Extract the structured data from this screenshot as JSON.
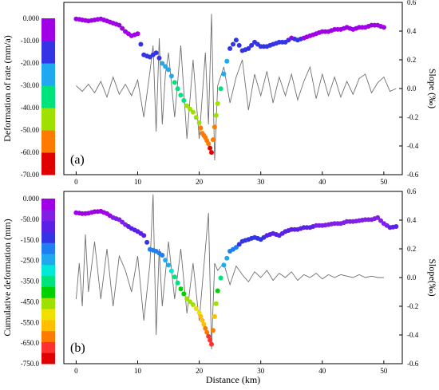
{
  "chart_data": [
    {
      "type": "scatter",
      "panel_label": "(a)",
      "ylabel": "Deformation of  rate (mm/a)",
      "y2label": "Slope (‰)",
      "ylim": [
        -70,
        0
      ],
      "yticks": [
        "0.000",
        "-10.00",
        "-20.00",
        "-30.00",
        "-40.00",
        "-50.00",
        "-60.00",
        "-70.00"
      ],
      "y2lim": [
        -0.6,
        0.6
      ],
      "y2ticks": [
        "0.6",
        "0.4",
        "0.2",
        "0.0",
        "-0.2",
        "-0.4",
        "-0.6"
      ],
      "xlim": [
        -2,
        53
      ],
      "xticks": [
        "0",
        "10",
        "20",
        "30",
        "40",
        "50"
      ],
      "colorbar_colors": [
        "#e00000",
        "#ff7b00",
        "#a0e000",
        "#00e27c",
        "#21a9f0",
        "#3434e6",
        "#a000e6"
      ],
      "deformation_points": {
        "x": [
          0,
          1,
          2,
          3,
          4,
          5,
          6,
          7,
          8,
          9,
          10,
          11,
          12,
          13,
          14,
          15,
          16,
          17,
          18,
          19,
          20,
          20.5,
          21,
          21.5,
          22,
          22.5,
          23,
          24,
          25,
          26,
          27,
          28,
          29,
          30,
          31,
          32,
          33,
          34,
          35,
          36,
          37,
          38,
          39,
          40,
          41,
          42,
          43,
          44,
          45,
          46,
          47,
          48,
          49,
          50
        ],
        "y": [
          -1,
          -1.5,
          -2,
          -1.5,
          -1,
          -2,
          -3,
          -4,
          -7,
          -9,
          -8,
          -18,
          -19,
          -17,
          -22,
          -25,
          -31,
          -37,
          -42,
          -45,
          -50,
          -55,
          -57,
          -60,
          -64,
          -52,
          -41,
          -27,
          -15,
          -11,
          -16,
          -15,
          -12,
          -14,
          -14,
          -13,
          -12,
          -12,
          -10,
          -11,
          -10,
          -9,
          -8,
          -7,
          -7,
          -6,
          -6,
          -5,
          -6,
          -5,
          -5,
          -4,
          -4,
          -5
        ]
      },
      "slope_line": {
        "x": [
          0,
          1,
          2,
          3,
          4,
          5,
          6,
          7,
          8,
          9,
          10,
          11,
          12,
          12.5,
          13,
          13.5,
          14,
          14.5,
          15,
          16,
          17,
          18,
          19,
          20,
          21,
          21.5,
          22,
          22.5,
          23,
          24,
          25,
          26,
          27,
          28,
          29,
          30,
          31,
          32,
          33,
          34,
          35,
          36,
          37,
          38,
          39,
          40,
          41,
          42,
          43,
          44,
          45,
          46,
          47,
          48,
          49,
          50,
          51,
          52
        ],
        "y": [
          0.02,
          -0.02,
          0.03,
          -0.03,
          0.05,
          -0.06,
          0.08,
          -0.04,
          0.03,
          -0.05,
          0.06,
          -0.2,
          0.12,
          0.3,
          -0.3,
          0.35,
          -0.25,
          0.1,
          0.25,
          -0.2,
          0.3,
          -0.35,
          0.2,
          -0.35,
          0.25,
          -0.25,
          0.52,
          -0.5,
          0.02,
          0.15,
          -0.1,
          0.08,
          0.2,
          -0.15,
          0.1,
          -0.05,
          0.12,
          -0.1,
          0.08,
          -0.05,
          0.1,
          -0.08,
          0.05,
          0.15,
          -0.07,
          0.1,
          -0.05,
          0.08,
          -0.06,
          0.05,
          -0.04,
          0.07,
          0.1,
          -0.03,
          0.04,
          0.08,
          -0.02,
          0.0
        ]
      }
    },
    {
      "type": "scatter",
      "panel_label": "(b)",
      "ylabel": "Cumulative deformation (mm)",
      "y2label": "Slope(‰)",
      "xlabel": "Distance (km)",
      "ylim": [
        -750,
        0
      ],
      "yticks": [
        "0.000",
        "-50.00",
        "-150.0",
        "-250.0",
        "-350.0",
        "-450.0",
        "-550.0",
        "-650.0",
        "-750.0"
      ],
      "y2lim": [
        -0.6,
        0.6
      ],
      "y2ticks": [
        "0.6",
        "0.4",
        "0.2",
        "0.0",
        "-0.2",
        "-0.4",
        "-0.6"
      ],
      "xlim": [
        -2,
        53
      ],
      "xticks": [
        "0",
        "10",
        "20",
        "30",
        "40",
        "50"
      ],
      "colorbar_colors": [
        "#e00000",
        "#ff3030",
        "#ff7b00",
        "#ffbf00",
        "#f0e000",
        "#a0e000",
        "#00d000",
        "#00e27c",
        "#00e8d8",
        "#21a9f0",
        "#1f7ff0",
        "#3434e6",
        "#5a20e6",
        "#8020e6",
        "#a000e6"
      ],
      "deformation_points": {
        "x": [
          0,
          1,
          2,
          3,
          4,
          5,
          6,
          7,
          8,
          9,
          10,
          11,
          12,
          13,
          14,
          15,
          16,
          17,
          18,
          19,
          20,
          20.5,
          21,
          21.5,
          22,
          22.5,
          23,
          24,
          25,
          26,
          27,
          28,
          29,
          30,
          31,
          32,
          33,
          34,
          35,
          36,
          37,
          38,
          39,
          40,
          41,
          42,
          43,
          44,
          45,
          46,
          47,
          48,
          49,
          50,
          51,
          52
        ],
        "y": [
          -35,
          -40,
          -38,
          -30,
          -28,
          -40,
          -60,
          -70,
          -95,
          -115,
          -130,
          -150,
          -220,
          -230,
          -250,
          -300,
          -360,
          -420,
          -470,
          -500,
          -540,
          -580,
          -620,
          -660,
          -700,
          -560,
          -430,
          -300,
          -230,
          -210,
          -180,
          -170,
          -160,
          -170,
          -150,
          -140,
          -150,
          -130,
          -120,
          -120,
          -110,
          -110,
          -100,
          -100,
          -95,
          -90,
          -90,
          -80,
          -80,
          -75,
          -70,
          -70,
          -60,
          -90,
          -110,
          -105
        ]
      },
      "slope_line": {
        "x": [
          0,
          0.5,
          1,
          1.5,
          2,
          3,
          4,
          5,
          6,
          7,
          8,
          9,
          10,
          11,
          12,
          12.5,
          13,
          13.5,
          14,
          15,
          16,
          17,
          18,
          19,
          20,
          21,
          21.5,
          22,
          22.5,
          23,
          24,
          25,
          26,
          27,
          28,
          29,
          30,
          31,
          32,
          33,
          34,
          35,
          36,
          37,
          38,
          39,
          40,
          41,
          42,
          43,
          44,
          45,
          46,
          47,
          48,
          49,
          50
        ],
        "y": [
          -0.15,
          0.1,
          -0.2,
          0.3,
          -0.1,
          0.25,
          -0.15,
          0.2,
          -0.2,
          0.15,
          0.05,
          -0.1,
          0.15,
          -0.3,
          0.1,
          0.58,
          -0.4,
          0.2,
          -0.2,
          0.25,
          -0.15,
          0.2,
          -0.25,
          0.1,
          -0.3,
          0.2,
          0.45,
          -0.5,
          0.1,
          0.05,
          0.1,
          -0.05,
          0.08,
          0.02,
          -0.03,
          0.04,
          0.0,
          0.05,
          -0.02,
          0.03,
          0.0,
          0.04,
          -0.02,
          0.02,
          0.0,
          0.03,
          -0.01,
          0.02,
          0.0,
          0.02,
          0.01,
          0.0,
          0.02,
          0.0,
          0.01,
          0.0,
          0.0
        ]
      }
    }
  ]
}
